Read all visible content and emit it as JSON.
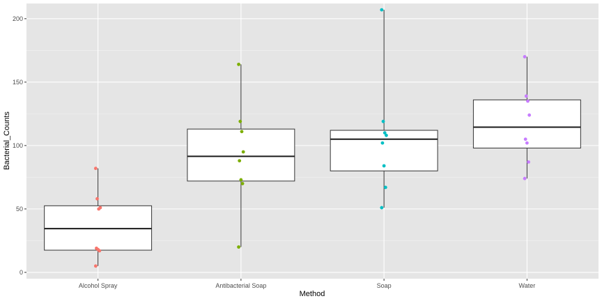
{
  "chart_data": {
    "type": "boxplot",
    "title": "",
    "xlabel": "Method",
    "ylabel": "Bacterial_Counts",
    "ylim": [
      -5,
      212
    ],
    "yticks": [
      0,
      50,
      100,
      150,
      200
    ],
    "categories": [
      "Alcohol Spray",
      "Antibacterial Soap",
      "Soap",
      "Water"
    ],
    "colors": [
      "#F8766D",
      "#7CAE00",
      "#00BFC4",
      "#C77CFF"
    ],
    "boxes": [
      {
        "category": "Alcohol Spray",
        "min": 5,
        "q1": 17.5,
        "median": 34.5,
        "q3": 52.5,
        "max": 82
      },
      {
        "category": "Antibacterial Soap",
        "min": 20,
        "q1": 72,
        "median": 91.5,
        "q3": 113,
        "max": 164
      },
      {
        "category": "Soap",
        "min": 51,
        "q1": 80,
        "median": 105,
        "q3": 112,
        "max": 207
      },
      {
        "category": "Water",
        "min": 74,
        "q1": 98,
        "median": 114.5,
        "q3": 136,
        "max": 170
      }
    ],
    "points": [
      {
        "category": "Alcohol Spray",
        "values": [
          82,
          58,
          50,
          51,
          19,
          18,
          17,
          5
        ]
      },
      {
        "category": "Antibacterial Soap",
        "values": [
          164,
          119,
          111,
          95,
          88,
          73,
          70,
          20
        ]
      },
      {
        "category": "Soap",
        "values": [
          207,
          119,
          110,
          108,
          102,
          84,
          67,
          51
        ]
      },
      {
        "category": "Water",
        "values": [
          170,
          139,
          135,
          124,
          105,
          102,
          87,
          74
        ]
      }
    ],
    "background": "#E5E5E5",
    "grid": true,
    "legend": "none"
  }
}
